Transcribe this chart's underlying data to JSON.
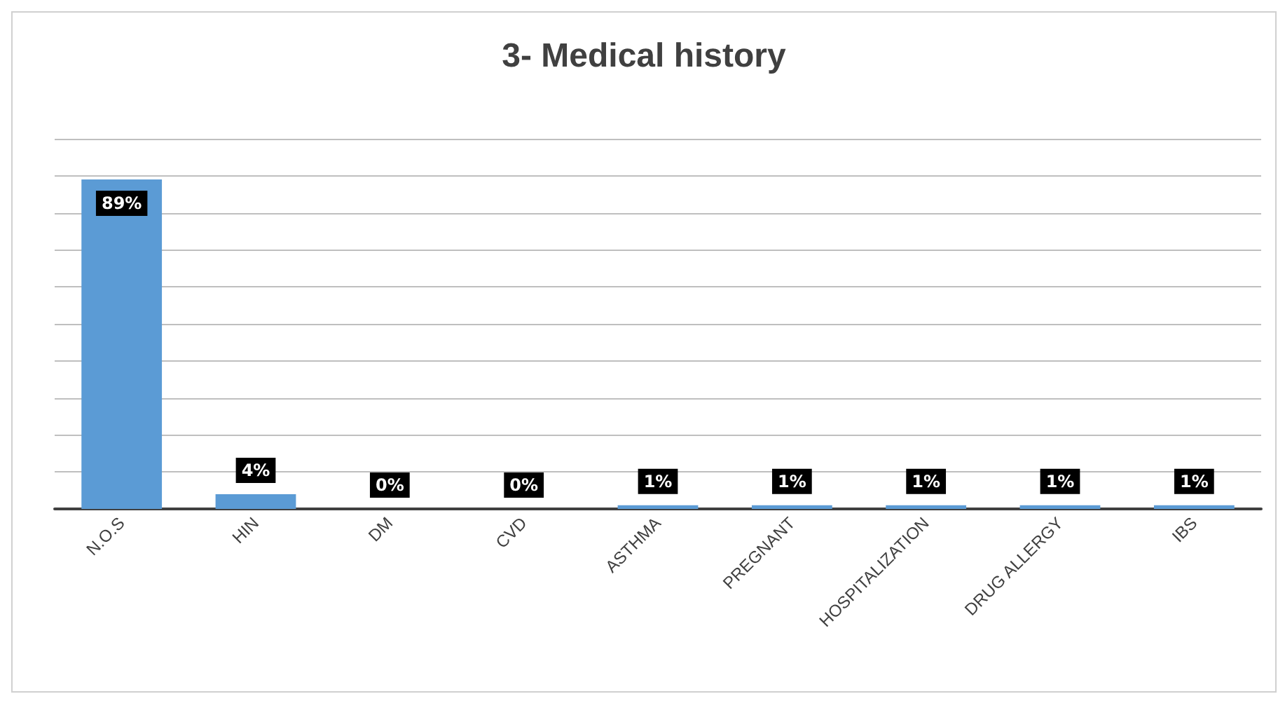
{
  "chart_data": {
    "type": "bar",
    "title": "3- Medical history",
    "categories": [
      "N.O.S",
      "HIN",
      "DM",
      "CVD",
      "ASTHMA",
      "PREGNANT",
      "HOSPITALIZATION",
      "DRUG ALLERGY",
      "IBS"
    ],
    "values": [
      89,
      4,
      0,
      0,
      1,
      1,
      1,
      1,
      1
    ],
    "value_labels": [
      "89%",
      "4%",
      "0%",
      "0%",
      "1%",
      "1%",
      "1%",
      "1%",
      "1%"
    ],
    "color": "#5b9bd5",
    "ylim": [
      0,
      100
    ],
    "yticks": [
      {
        "value": 0,
        "label": null
      },
      {
        "value": 10,
        "label": null
      },
      {
        "value": 20,
        "label": null
      },
      {
        "value": 30,
        "label": null
      },
      {
        "value": 40,
        "label": null
      },
      {
        "value": 50,
        "label": null
      },
      {
        "value": 60,
        "label": null
      },
      {
        "value": 70,
        "label": null
      },
      {
        "value": 80,
        "label": null
      },
      {
        "value": 90,
        "label": null
      },
      {
        "value": 100,
        "label": null
      }
    ],
    "grid": "y",
    "tick_labels": "x"
  }
}
